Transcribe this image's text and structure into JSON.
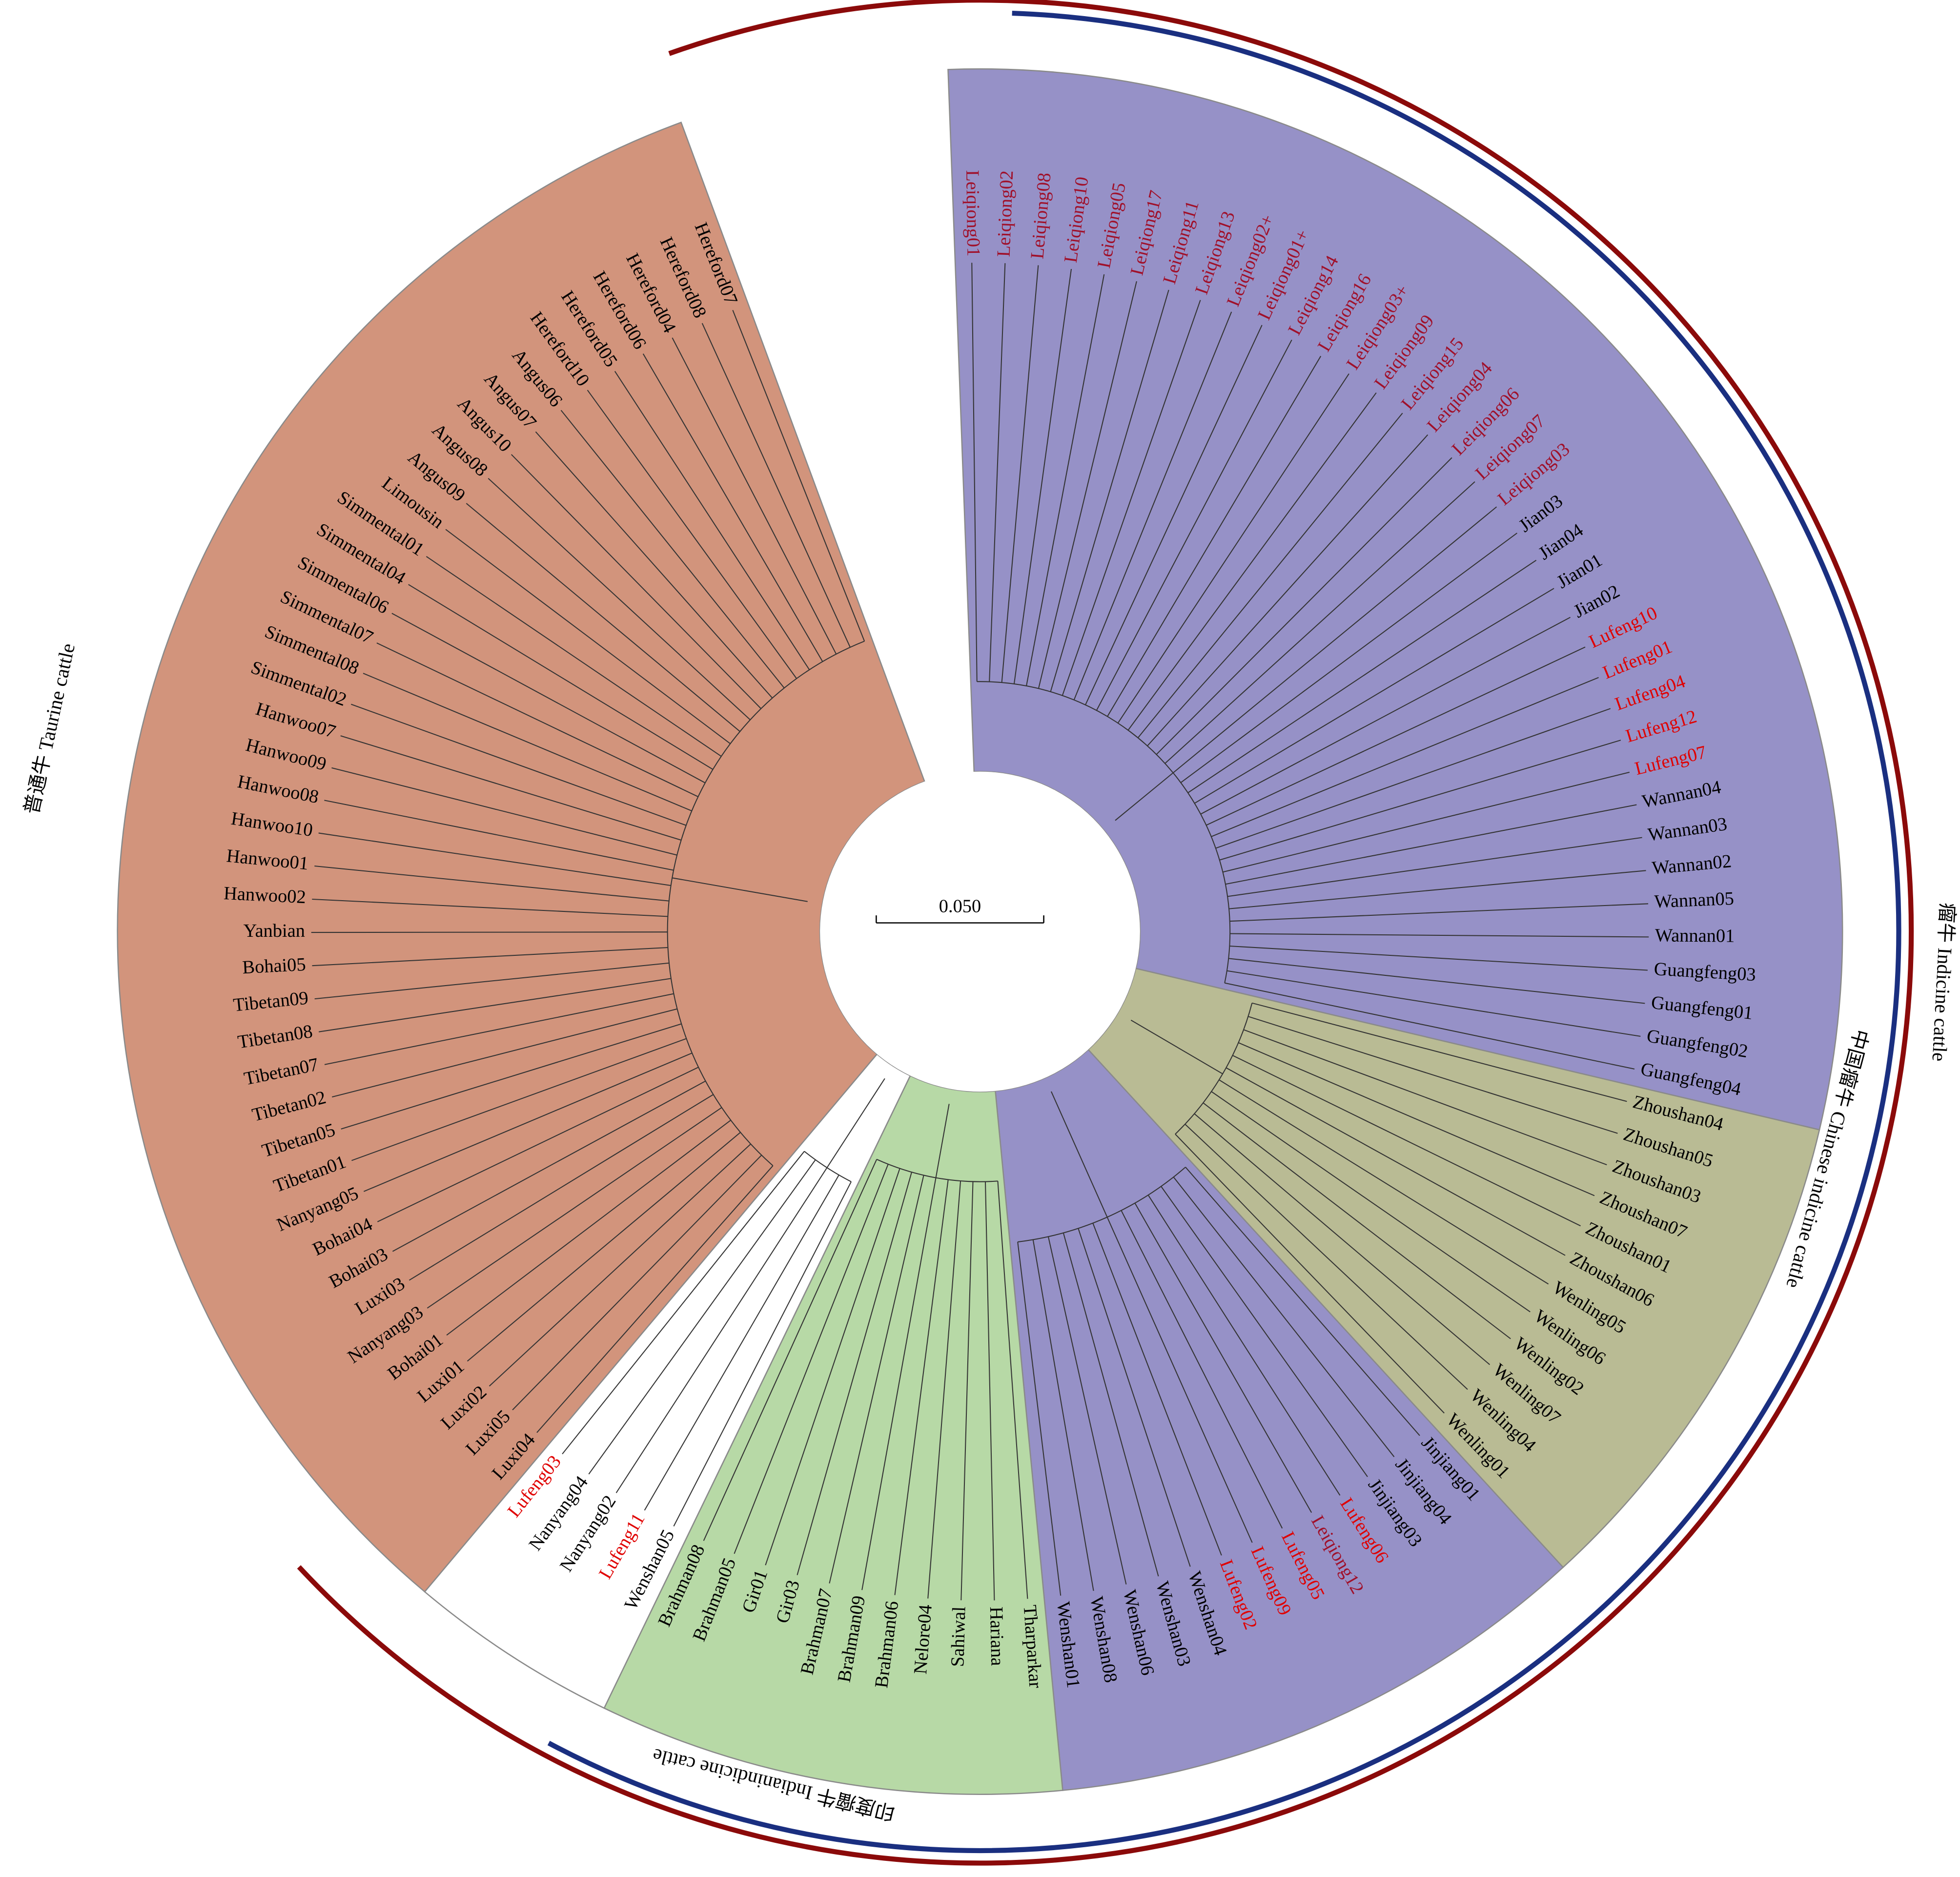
{
  "scale_bar": "0.050",
  "clades": [
    {
      "label": "瘤牛  Indicine cattle",
      "color": "#1a2f80"
    },
    {
      "label": "中国瘤牛  Chinese indicine cattle",
      "color": "#1a2f80"
    },
    {
      "label": "印度瘤牛  Indianindicine cattle",
      "color": "#1a2f80"
    },
    {
      "label": "普通牛  Taurine cattle",
      "color": "#8b0a0a"
    }
  ],
  "sectors": [
    {
      "color": "#9691c7",
      "leaves": [
        [
          "Leiqiong01",
          "#a0102a"
        ],
        [
          "Leiqiong02",
          "#a0102a"
        ],
        [
          "Leiqiong08",
          "#a0102a"
        ],
        [
          "Leiqiong10",
          "#a0102a"
        ],
        [
          "Leiqiong05",
          "#a0102a"
        ],
        [
          "Leiqiong17",
          "#a0102a"
        ],
        [
          "Leiqiong11",
          "#a0102a"
        ],
        [
          "Leiqiong13",
          "#a0102a"
        ],
        [
          "Leiqiong02+",
          "#a0102a"
        ],
        [
          "Leiqiong01+",
          "#a0102a"
        ],
        [
          "Leiqiong14",
          "#a0102a"
        ],
        [
          "Leiqiong16",
          "#a0102a"
        ],
        [
          "Leiqiong03+",
          "#a0102a"
        ],
        [
          "Leiqiong09",
          "#a0102a"
        ],
        [
          "Leiqiong15",
          "#a0102a"
        ],
        [
          "Leiqiong04",
          "#a0102a"
        ],
        [
          "Leiqiong06",
          "#a0102a"
        ],
        [
          "Leiqiong07",
          "#a0102a"
        ],
        [
          "Leiqiong03",
          "#a0102a"
        ],
        [
          "Jian03",
          "#000000"
        ],
        [
          "Jian04",
          "#000000"
        ],
        [
          "Jian01",
          "#000000"
        ],
        [
          "Jian02",
          "#000000"
        ],
        [
          "Lufeng10",
          "#e00000"
        ],
        [
          "Lufeng01",
          "#e00000"
        ],
        [
          "Lufeng04",
          "#e00000"
        ],
        [
          "Lufeng12",
          "#e00000"
        ],
        [
          "Lufeng07",
          "#e00000"
        ],
        [
          "Wannan04",
          "#000000"
        ],
        [
          "Wannan03",
          "#000000"
        ],
        [
          "Wannan02",
          "#000000"
        ],
        [
          "Wannan05",
          "#000000"
        ],
        [
          "Wannan01",
          "#000000"
        ],
        [
          "Guangfeng03",
          "#000000"
        ],
        [
          "Guangfeng01",
          "#000000"
        ],
        [
          "Guangfeng02",
          "#000000"
        ],
        [
          "Guangfeng04",
          "#000000"
        ]
      ]
    },
    {
      "color": "#b9bb94",
      "leaves": [
        [
          "Zhoushan04",
          "#000000"
        ],
        [
          "Zhoushan05",
          "#000000"
        ],
        [
          "Zhoushan03",
          "#000000"
        ],
        [
          "Zhoushan07",
          "#000000"
        ],
        [
          "Zhoushan01",
          "#000000"
        ],
        [
          "Zhoushan06",
          "#000000"
        ],
        [
          "Wenling05",
          "#000000"
        ],
        [
          "Wenling06",
          "#000000"
        ],
        [
          "Wenling02",
          "#000000"
        ],
        [
          "Wenling07",
          "#000000"
        ],
        [
          "Wenling04",
          "#000000"
        ],
        [
          "Wenling01",
          "#000000"
        ]
      ]
    },
    {
      "color": "#9691c7",
      "leaves": [
        [
          "Jinjiang01",
          "#000000"
        ],
        [
          "Jinjiang04",
          "#000000"
        ],
        [
          "Jinjiang03",
          "#000000"
        ],
        [
          "Lufeng06",
          "#e00000"
        ],
        [
          "Leiqiong12",
          "#a0102a"
        ],
        [
          "Lufeng05",
          "#e00000"
        ],
        [
          "Lufeng09",
          "#e00000"
        ],
        [
          "Lufeng02",
          "#e00000"
        ],
        [
          "Wenshan04",
          "#000000"
        ],
        [
          "Wenshan03",
          "#000000"
        ],
        [
          "Wenshan06",
          "#000000"
        ],
        [
          "Wenshan08",
          "#000000"
        ],
        [
          "Wenshan01",
          "#000000"
        ]
      ]
    },
    {
      "color": "#b7d9a6",
      "leaves": [
        [
          "Tharparkar",
          "#000000"
        ],
        [
          "Hariana",
          "#000000"
        ],
        [
          "Sahiwal",
          "#000000"
        ],
        [
          "Nelore04",
          "#000000"
        ],
        [
          "Brahman06",
          "#000000"
        ],
        [
          "Brahman09",
          "#000000"
        ],
        [
          "Brahman07",
          "#000000"
        ],
        [
          "Gir03",
          "#000000"
        ],
        [
          "Gir01",
          "#000000"
        ],
        [
          "Brahman05",
          "#000000"
        ],
        [
          "Brahman08",
          "#000000"
        ]
      ]
    },
    {
      "color": "#ffffff",
      "leaves": [
        [
          "Wenshan05",
          "#000000"
        ],
        [
          "Lufeng11",
          "#e00000"
        ],
        [
          "Nanyang02",
          "#000000"
        ],
        [
          "Nanyang04",
          "#000000"
        ],
        [
          "Lufeng03",
          "#e00000"
        ]
      ]
    },
    {
      "color": "#d2947c",
      "leaves": [
        [
          "Luxi04",
          "#000000"
        ],
        [
          "Luxi05",
          "#000000"
        ],
        [
          "Luxi02",
          "#000000"
        ],
        [
          "Luxi01",
          "#000000"
        ],
        [
          "Bohai01",
          "#000000"
        ],
        [
          "Nanyang03",
          "#000000"
        ],
        [
          "Luxi03",
          "#000000"
        ],
        [
          "Bohai03",
          "#000000"
        ],
        [
          "Bohai04",
          "#000000"
        ],
        [
          "Nanyang05",
          "#000000"
        ],
        [
          "Tibetan01",
          "#000000"
        ],
        [
          "Tibetan05",
          "#000000"
        ],
        [
          "Tibetan02",
          "#000000"
        ],
        [
          "Tibetan07",
          "#000000"
        ],
        [
          "Tibetan08",
          "#000000"
        ],
        [
          "Tibetan09",
          "#000000"
        ],
        [
          "Bohai05",
          "#000000"
        ],
        [
          "Yanbian",
          "#000000"
        ],
        [
          "Hanwoo02",
          "#000000"
        ],
        [
          "Hanwoo01",
          "#000000"
        ],
        [
          "Hanwoo10",
          "#000000"
        ],
        [
          "Hanwoo08",
          "#000000"
        ],
        [
          "Hanwoo09",
          "#000000"
        ],
        [
          "Hanwoo07",
          "#000000"
        ],
        [
          "Simmental02",
          "#000000"
        ],
        [
          "Simmental08",
          "#000000"
        ],
        [
          "Simmental07",
          "#000000"
        ],
        [
          "Simmental06",
          "#000000"
        ],
        [
          "Simmental04",
          "#000000"
        ],
        [
          "Simmental01",
          "#000000"
        ],
        [
          "Limousin",
          "#000000"
        ],
        [
          "Angus09",
          "#000000"
        ],
        [
          "Angus08",
          "#000000"
        ],
        [
          "Angus10",
          "#000000"
        ],
        [
          "Angus07",
          "#000000"
        ],
        [
          "Angus06",
          "#000000"
        ],
        [
          "Hereford10",
          "#000000"
        ],
        [
          "Hereford05",
          "#000000"
        ],
        [
          "Hereford06",
          "#000000"
        ],
        [
          "Hereford04",
          "#000000"
        ],
        [
          "Hereford08",
          "#000000"
        ],
        [
          "Hereford07",
          "#000000"
        ]
      ]
    }
  ]
}
